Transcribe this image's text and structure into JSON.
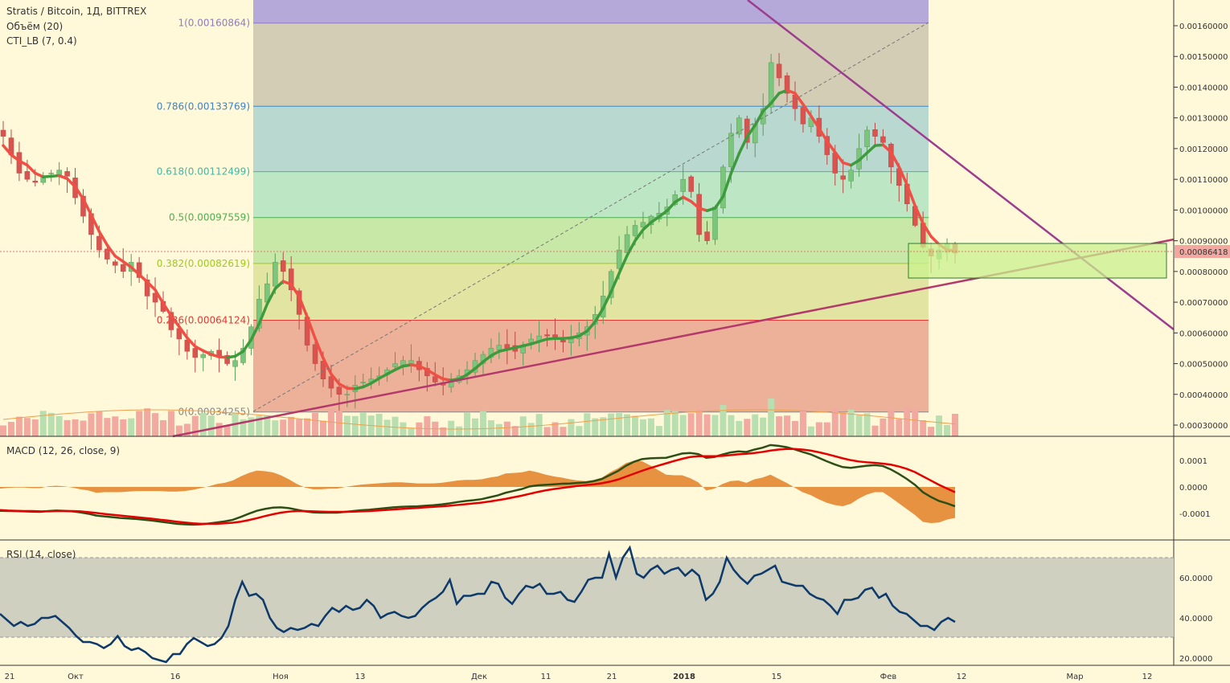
{
  "legend": {
    "symbol": "Stratis / Bitcoin, 1Д, BITTREX",
    "volume": "Объём (20)",
    "cti": "CTI_LB (7, 0.4)",
    "macd": "MACD (12, 26, close, 9)",
    "rsi": "RSI (14, close)"
  },
  "price_tag": "0.00086418",
  "chart_data": [
    {
      "type": "candlestick",
      "title": "Stratis / Bitcoin, 1Д, BITTREX",
      "x_axis_labels": [
        "21",
        "Окт",
        "16",
        "Ноя",
        "13",
        "Дек",
        "11",
        "21",
        "2018",
        "15",
        "Фев",
        "12",
        "Мар",
        "12"
      ],
      "y_ticks": [
        "0.00160000",
        "0.00150000",
        "0.00140000",
        "0.00130000",
        "0.00120000",
        "0.00110000",
        "0.00100000",
        "0.00090000",
        "0.00080000",
        "0.00070000",
        "0.00060000",
        "0.00050000",
        "0.00040000",
        "0.00030000"
      ],
      "ylim": [
        0.00027,
        0.00168
      ],
      "last_price": 0.00086418,
      "fib_levels": [
        {
          "label": "1(0.00160864)",
          "value": 0.00160864,
          "color": "#8e7cc3"
        },
        {
          "label": "0.786(0.00133769)",
          "value": 0.00133769,
          "color": "#3d85c6"
        },
        {
          "label": "0.618(0.00112499)",
          "value": 0.00112499,
          "color": "#45b6a0"
        },
        {
          "label": "0.5(0.00097559)",
          "value": 0.00097559,
          "color": "#4caf50"
        },
        {
          "label": "0.382(0.00082619)",
          "value": 0.00082619,
          "color": "#9ccc18"
        },
        {
          "label": "0.236(0.00064124)",
          "value": 0.00064124,
          "color": "#e53935"
        },
        {
          "label": "0(0.00034255)",
          "value": 0.00034255,
          "color": "#888888"
        }
      ],
      "close_series": [
        0.00124,
        0.00118,
        0.00112,
        0.0011,
        0.00109,
        0.00111,
        0.00112,
        0.00113,
        0.00111,
        0.00104,
        0.00098,
        0.00092,
        0.00087,
        0.00084,
        0.00082,
        0.0008,
        0.00083,
        0.00078,
        0.00072,
        0.0007,
        0.00067,
        0.00061,
        0.00058,
        0.00054,
        0.00052,
        0.00053,
        0.00054,
        0.00052,
        0.0005,
        0.00051,
        0.00055,
        0.00062,
        0.00071,
        0.00076,
        0.00083,
        0.0008,
        0.00074,
        0.00066,
        0.00056,
        0.0005,
        0.00045,
        0.00042,
        0.0004,
        0.0004,
        0.00043,
        0.00044,
        0.00045,
        0.00046,
        0.00048,
        0.0005,
        0.00051,
        0.00051,
        0.00048,
        0.00046,
        0.00044,
        0.00043,
        0.00044,
        0.00046,
        0.00048,
        0.00051,
        0.00053,
        0.00055,
        0.00056,
        0.00055,
        0.00054,
        0.00056,
        0.00058,
        0.00059,
        0.00059,
        0.00058,
        0.00057,
        0.00058,
        0.0006,
        0.00062,
        0.00066,
        0.00072,
        0.0008,
        0.00087,
        0.00092,
        0.00095,
        0.00096,
        0.00098,
        0.00099,
        0.00101,
        0.00105,
        0.0011,
        0.00106,
        0.00092,
        0.0009,
        0.00101,
        0.00114,
        0.00125,
        0.0013,
        0.00122,
        0.00128,
        0.00133,
        0.00148,
        0.00143,
        0.00138,
        0.00133,
        0.00128,
        0.0013,
        0.00124,
        0.00118,
        0.00112,
        0.0011,
        0.00113,
        0.0012,
        0.00126,
        0.00124,
        0.00122,
        0.00114,
        0.00108,
        0.00102,
        0.00095,
        0.00088,
        0.00085,
        0.00087,
        0.00089,
        0.00086
      ],
      "overlays": [
        {
          "name": "CTI_LB (7, 0.4)",
          "type": "line"
        },
        {
          "name": "Объём (20)",
          "type": "bar"
        }
      ]
    },
    {
      "type": "line",
      "title": "MACD (12, 26, close, 9)",
      "y_ticks": [
        "0.0001",
        "0.0000",
        "-0.0001"
      ],
      "ylim": [
        -0.00018,
        0.00016
      ],
      "series": [
        {
          "name": "MACD",
          "color": "#2d4f17",
          "values": [
            -9e-05,
            -9.05e-05,
            -9.1e-05,
            -9.2e-05,
            -9.3e-05,
            -9.4e-05,
            -9.1e-05,
            -8.9e-05,
            -9e-05,
            -9.2e-05,
            -9.6e-05,
            -0.000101,
            -0.000108,
            -0.000111,
            -0.000114,
            -0.000117,
            -0.000119,
            -0.000121,
            -0.000124,
            -0.000127,
            -0.000131,
            -0.000135,
            -0.000139,
            -0.000141,
            -0.000142,
            -0.000141,
            -0.000138,
            -0.000134,
            -0.00013,
            -0.000124,
            -0.000113,
            -0.000101,
            -9e-05,
            -8.3e-05,
            -7.8e-05,
            -7.7e-05,
            -8e-05,
            -8.6e-05,
            -9.2e-05,
            -9.6e-05,
            -9.7e-05,
            -9.7e-05,
            -9.7e-05,
            -9.4e-05,
            -9.1e-05,
            -8.8e-05,
            -8.6e-05,
            -8.3e-05,
            -8e-05,
            -7.7e-05,
            -7.5e-05,
            -7.4e-05,
            -7.3e-05,
            -7.1e-05,
            -6.9e-05,
            -6.6e-05,
            -6.2e-05,
            -5.7e-05,
            -5.3e-05,
            -5e-05,
            -4.6e-05,
            -3.9e-05,
            -3.2e-05,
            -2.2e-05,
            -1.5e-05,
            -8e-06,
            2e-06,
            6e-06,
            8e-06,
            1e-05,
            1.2e-05,
            1.3e-05,
            1.5e-05,
            1.7e-05,
            2.2e-05,
            3e-05,
            4.5e-05,
            6e-05,
            8e-05,
            9.5e-05,
            0.000105,
            0.000108,
            0.000109,
            0.00011,
            0.000118,
            0.000126,
            0.000128,
            0.000124,
            0.00011,
            0.000113,
            0.000122,
            0.00013,
            0.000134,
            0.000132,
            0.000141,
            0.000148,
            0.000158,
            0.000155,
            0.00015,
            0.000142,
            0.000132,
            0.000123,
            0.00011,
            9.7e-05,
            8.5e-05,
            7.5e-05,
            7.2e-05,
            7.6e-05,
            8e-05,
            8.2e-05,
            7.9e-05,
            6.6e-05,
            4.9e-05,
            3e-05,
            8e-06,
            -2e-05,
            -3.8e-05,
            -5.3e-05,
            -6.2e-05,
            -7.3e-05
          ]
        },
        {
          "name": "Signal",
          "color": "#e50000",
          "values": [
            -8.7e-05,
            -8.9e-05,
            -9e-05,
            -9.1e-05,
            -9.1e-05,
            -9.2e-05,
            -9.2e-05,
            -9.1e-05,
            -9.1e-05,
            -9.1e-05,
            -9.2e-05,
            -9.5e-05,
            -9.8e-05,
            -0.000102,
            -0.000105,
            -0.000108,
            -0.000111,
            -0.000114,
            -0.000117,
            -0.00012,
            -0.000124,
            -0.000127,
            -0.000131,
            -0.000134,
            -0.000137,
            -0.000139,
            -0.000139,
            -0.000139,
            -0.000137,
            -0.000135,
            -0.000131,
            -0.000125,
            -0.000118,
            -0.00011,
            -0.000103,
            -9.7e-05,
            -9.3e-05,
            -9.1e-05,
            -9.1e-05,
            -9.2e-05,
            -9.3e-05,
            -9.4e-05,
            -9.4e-05,
            -9.4e-05,
            -9.3e-05,
            -9.2e-05,
            -9.1e-05,
            -8.9e-05,
            -8.7e-05,
            -8.5e-05,
            -8.3e-05,
            -8.1e-05,
            -7.9e-05,
            -7.7e-05,
            -7.5e-05,
            -7.3e-05,
            -7.1e-05,
            -6.8e-05,
            -6.5e-05,
            -6.2e-05,
            -5.9e-05,
            -5.5e-05,
            -5e-05,
            -4.5e-05,
            -3.9e-05,
            -3.3e-05,
            -2.6e-05,
            -1.9e-05,
            -1.3e-05,
            -8e-06,
            -4e-06,
            0.0,
            4e-06,
            7e-06,
            1e-05,
            1.4e-05,
            2e-05,
            2.8e-05,
            3.9e-05,
            5e-05,
            6.1e-05,
            7.1e-05,
            8e-05,
            8.9e-05,
            9.8e-05,
            0.000106,
            0.000113,
            0.000116,
            0.000116,
            0.000116,
            0.000117,
            0.00012,
            0.000123,
            0.000125,
            0.000128,
            0.000132,
            0.000137,
            0.000141,
            0.000143,
            0.000143,
            0.000141,
            0.000137,
            0.000131,
            0.000124,
            0.000116,
            0.000108,
            0.000101,
            9.6e-05,
            9.3e-05,
            9.1e-05,
            8.8e-05,
            8.4e-05,
            7.7e-05,
            6.8e-05,
            5.6e-05,
            4e-05,
            2.4e-05,
            8e-06,
            -6e-06,
            -2e-05
          ]
        }
      ]
    },
    {
      "type": "line",
      "title": "RSI (14, close)",
      "y_ticks": [
        "60.0000",
        "40.0000",
        "20.0000"
      ],
      "ylim": [
        17,
        80
      ],
      "band": [
        30,
        70
      ],
      "series": [
        {
          "name": "RSI",
          "color": "#0e3a6b",
          "values": [
            42,
            39,
            36,
            38,
            36,
            37,
            40,
            40,
            41,
            38,
            35,
            31,
            28,
            28,
            27,
            25,
            27,
            31,
            26,
            24,
            25,
            23,
            20,
            19,
            18,
            22,
            22,
            27,
            30,
            28,
            26,
            27,
            30,
            36,
            49,
            58,
            51,
            52,
            49,
            40,
            35,
            33,
            35,
            34,
            35,
            37,
            36,
            41,
            45,
            43,
            46,
            44,
            45,
            49,
            46,
            40,
            42,
            43,
            41,
            40,
            41,
            45,
            48,
            50,
            53,
            59,
            47,
            51,
            51,
            52,
            52,
            58,
            57,
            50,
            47,
            52,
            56,
            55,
            57,
            52,
            52,
            53,
            49,
            48,
            53,
            59,
            60,
            60,
            72,
            60,
            70,
            75,
            62,
            60,
            64,
            66,
            62,
            64,
            65,
            61,
            64,
            61,
            49,
            52,
            58,
            70,
            64,
            60,
            57,
            61,
            62,
            64,
            66,
            58,
            57,
            56,
            56,
            52,
            50,
            49,
            46,
            42,
            49,
            49,
            50,
            54,
            55,
            50,
            52,
            46,
            43,
            42,
            39,
            36,
            36,
            34,
            38,
            40,
            38
          ]
        }
      ]
    }
  ]
}
